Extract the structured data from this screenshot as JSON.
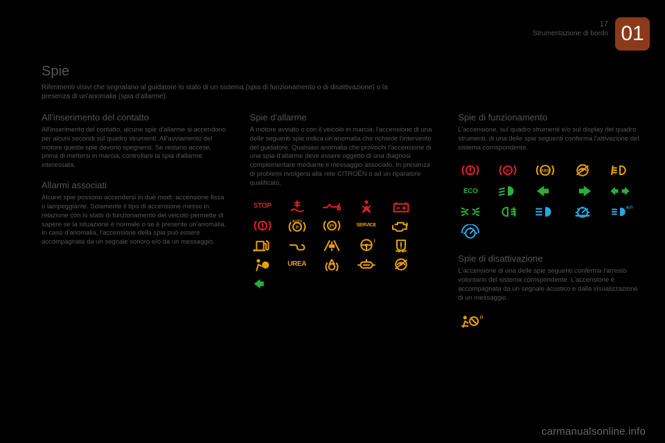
{
  "header": {
    "page_number": "17",
    "section": "Strumentazione di bordo",
    "chapter": "01"
  },
  "title": "Spie",
  "intro": "Riferimenti visivi che segnalano al guidatore lo stato di un sistema (spia di funzionamento o di disattivazione) o la presenza di un'anomalia (spia d'allarme).",
  "col1": {
    "sec1_title": "All'inserimento del contatto",
    "sec1_body": "All'inserimento del contatto, alcune spie d'allarme si accendono per alcuni secondi sul quadro strumenti.\nAll'avviamento del motore queste spie devono spegnersi.\nSe restano accese, prima di mettersi in marcia, controllare la spia d'allarme interessata.",
    "sec2_title": "Allarmi associati",
    "sec2_body": "Alcune spie possono accendersi in due modi: accensione fissa o lampeggiante.\nSolamente il tipo di accensione messo in relazione con lo stato di funzionamento del veicolo permette di sapere se la situazione è normale o se è presente un'anomalia. In caso d'anomalia, l'accensione della spia può essere accompagnata da un segnale sonoro e/o da un messaggio."
  },
  "col2": {
    "sec1_title": "Spie d'allarme",
    "sec1_body": "A motore avviato o con il veicolo in marcia, l'accensione di una delle seguenti spie indica un'anomalia che richiede l'intervento del guidatore.\nQualsiasi anomalia che provochi l'accensione di una spia d'allarme deve essere oggetto di una diagnosi complementare mediante il messaggio associato.\nIn presenza di problemi rivolgersi alla rete CITROËN o ad un riparatore qualificato."
  },
  "col3": {
    "sec1_title": "Spie di funzionamento",
    "sec1_body": "L'accensione, sul quadro strumenti e/o sul display del quadro strumenti, di una delle spie seguenti conferma l'attivazione del sistema corrispondente.",
    "sec2_title": "Spie di disattivazione",
    "sec2_body": "L'accensione di una delle spie seguenti conferma l'arresto volontario del sistema corrispondente.\nL'accensione è accompagnata da un segnale acustico e dalla visualizzazione di un messaggio."
  },
  "alarm_icons": [
    {
      "name": "stop-icon",
      "color": "red",
      "kind": "text",
      "text": "STOP"
    },
    {
      "name": "coolant-temp-icon",
      "color": "red",
      "kind": "coolant"
    },
    {
      "name": "oil-pressure-icon",
      "color": "red",
      "kind": "oil"
    },
    {
      "name": "seatbelt-icon",
      "color": "red",
      "kind": "seatbelt"
    },
    {
      "name": "battery-icon",
      "color": "red",
      "kind": "battery"
    },
    {
      "name": "brake-icon",
      "color": "red",
      "kind": "brake"
    },
    {
      "name": "auto-hold-icon",
      "color": "amber",
      "kind": "autohold"
    },
    {
      "name": "park-brake-fault-icon",
      "color": "amber",
      "kind": "parkbrake"
    },
    {
      "name": "service-icon",
      "color": "amber",
      "kind": "text",
      "text": "SERVICE"
    },
    {
      "name": "engine-fault-icon",
      "color": "amber",
      "kind": "engine"
    },
    {
      "name": "fuel-low-icon",
      "color": "amber",
      "kind": "fuel"
    },
    {
      "name": "diesel-preheat-icon",
      "color": "amber",
      "kind": "preheat"
    },
    {
      "name": "lane-departure-icon",
      "color": "amber",
      "kind": "lane"
    },
    {
      "name": "power-steering-icon",
      "color": "amber",
      "kind": "steering"
    },
    {
      "name": "tyre-pressure-icon",
      "color": "amber",
      "kind": "tyre"
    },
    {
      "name": "airbag-icon",
      "color": "amber",
      "kind": "airbag"
    },
    {
      "name": "urea-icon",
      "color": "amber",
      "kind": "text",
      "text": "UREA"
    },
    {
      "name": "foot-brake-icon",
      "color": "amber",
      "kind": "footbrake"
    },
    {
      "name": "autodiag-icon",
      "color": "amber",
      "kind": "autodiag"
    },
    {
      "name": "esp-off-icon",
      "color": "amber",
      "kind": "espoff"
    },
    {
      "name": "turn-green-icon",
      "color": "green",
      "kind": "turn-small"
    }
  ],
  "function_icons": [
    {
      "name": "brake-warn-icon",
      "color": "red",
      "kind": "brake"
    },
    {
      "name": "park-brake-icon",
      "color": "red",
      "kind": "parkbrake-p"
    },
    {
      "name": "abs-icon",
      "color": "amber",
      "kind": "abs"
    },
    {
      "name": "esp-icon",
      "color": "amber",
      "kind": "esp"
    },
    {
      "name": "front-fog-icon",
      "color": "amber",
      "kind": "frontfog"
    },
    {
      "name": "eco-icon",
      "color": "green",
      "kind": "text",
      "text": "ECO"
    },
    {
      "name": "dipped-beam-icon",
      "color": "green",
      "kind": "dipped"
    },
    {
      "name": "left-turn-icon",
      "color": "green",
      "kind": "arrow-left"
    },
    {
      "name": "right-turn-icon",
      "color": "green",
      "kind": "arrow-right"
    },
    {
      "name": "hazard-icon",
      "color": "green",
      "kind": "hazard"
    },
    {
      "name": "side-lights-icon",
      "color": "green",
      "kind": "sidelights"
    },
    {
      "name": "rear-fog-icon",
      "color": "green",
      "kind": "rearfog"
    },
    {
      "name": "main-beam-icon",
      "color": "blue",
      "kind": "mainbeam"
    },
    {
      "name": "cruise-icon",
      "color": "blue",
      "kind": "cruise"
    },
    {
      "name": "auto-lights-icon",
      "color": "blue",
      "kind": "autolights"
    },
    {
      "name": "speed-limit-icon",
      "color": "blue",
      "kind": "speedlimit"
    }
  ],
  "deactivation_icons": [
    {
      "name": "passenger-airbag-off-icon",
      "color": "amber",
      "kind": "pass-airbag"
    }
  ],
  "colors": {
    "red": "#d22222",
    "amber": "#e6a000",
    "green": "#2aae3a",
    "blue": "#2aa6e0",
    "bg": "#000000",
    "text": "#555555"
  },
  "watermark": "carmanualsonline.info"
}
